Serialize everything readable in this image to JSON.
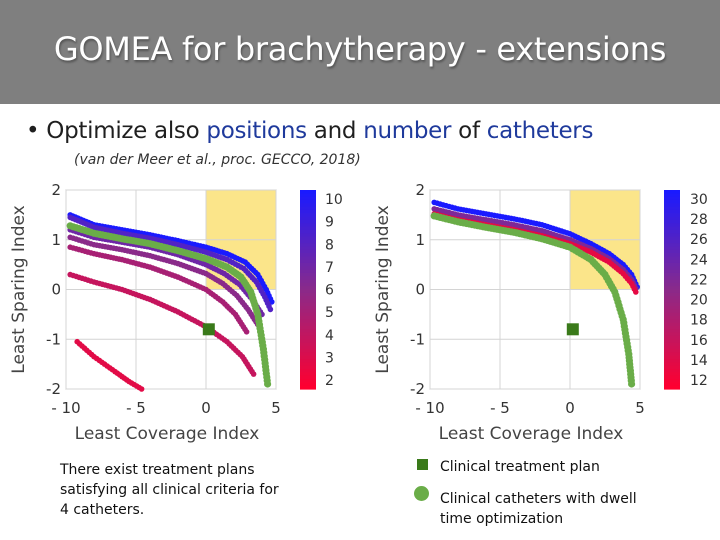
{
  "title": "GOMEA for brachytherapy - extensions",
  "bullet": {
    "marker": "•",
    "parts": [
      "Optimize also ",
      "positions",
      " and ",
      "number",
      " of ",
      "catheters"
    ]
  },
  "citation": "(van der Meer et al., proc. GECCO, 2018)",
  "note": "There exist treatment plans satisfying all clinical criteria for 4 catheters.",
  "legend": {
    "clinical_plan": "Clinical treatment plan",
    "clinical_catheters": "Clinical catheters with dwell time optimization"
  },
  "colors": {
    "title_bar": "#7f7f7f",
    "highlight_text": "#1f3a9c",
    "feasible_region": "#fbe58a",
    "clinical_plan_marker": "#3a7a1a",
    "clinical_front": "#6aad48",
    "colorbar_low": "#ff0030",
    "colorbar_mid": "#8a2a8a",
    "colorbar_high": "#1a1aff"
  },
  "chart_data": [
    {
      "type": "scatter",
      "xlabel": "Least Coverage Index",
      "ylabel": "Least Sparing Index",
      "xlim": [
        -10,
        5
      ],
      "ylim": [
        -2,
        2
      ],
      "xticks": [
        "- 10",
        "- 5",
        "0",
        "5"
      ],
      "yticks": [
        "2",
        "1",
        "0",
        "-1",
        "-2"
      ],
      "feasible_region": {
        "x": [
          0,
          5
        ],
        "y": [
          0,
          2
        ]
      },
      "clinical_plan": {
        "x": 0.2,
        "y": -0.8
      },
      "colorbar": {
        "label_values": [
          10,
          9,
          8,
          7,
          6,
          5,
          4,
          3,
          2
        ],
        "min": 2,
        "max": 10
      },
      "series": [
        {
          "color_value": 10,
          "points": [
            [
              -9.7,
              1.5
            ],
            [
              -8,
              1.3
            ],
            [
              -6,
              1.2
            ],
            [
              -4,
              1.1
            ],
            [
              -2,
              0.98
            ],
            [
              0,
              0.85
            ],
            [
              1.5,
              0.72
            ],
            [
              2.8,
              0.55
            ],
            [
              3.7,
              0.3
            ],
            [
              4.3,
              0.0
            ],
            [
              4.7,
              -0.25
            ]
          ]
        },
        {
          "color_value": 8,
          "points": [
            [
              -9.7,
              1.45
            ],
            [
              -8,
              1.25
            ],
            [
              -6,
              1.13
            ],
            [
              -4,
              1.03
            ],
            [
              -2,
              0.9
            ],
            [
              0,
              0.75
            ],
            [
              1.5,
              0.6
            ],
            [
              2.7,
              0.42
            ],
            [
              3.6,
              0.15
            ],
            [
              4.2,
              -0.15
            ],
            [
              4.6,
              -0.4
            ]
          ]
        },
        {
          "color_value": 7,
          "points": [
            [
              -9.7,
              1.2
            ],
            [
              -8,
              1.05
            ],
            [
              -6,
              0.95
            ],
            [
              -4,
              0.85
            ],
            [
              -2,
              0.7
            ],
            [
              0,
              0.5
            ],
            [
              1.3,
              0.32
            ],
            [
              2.4,
              0.1
            ],
            [
              3.3,
              -0.2
            ],
            [
              4.0,
              -0.5
            ]
          ]
        },
        {
          "color_value": 6,
          "points": [
            [
              -9.7,
              1.05
            ],
            [
              -8,
              0.9
            ],
            [
              -6,
              0.8
            ],
            [
              -4,
              0.68
            ],
            [
              -2,
              0.52
            ],
            [
              0,
              0.32
            ],
            [
              1.2,
              0.12
            ],
            [
              2.2,
              -0.12
            ],
            [
              3.0,
              -0.4
            ],
            [
              3.8,
              -0.75
            ]
          ]
        },
        {
          "color_value": 5,
          "points": [
            [
              -9.7,
              0.85
            ],
            [
              -8,
              0.72
            ],
            [
              -6,
              0.6
            ],
            [
              -4,
              0.45
            ],
            [
              -2,
              0.25
            ],
            [
              0,
              0.0
            ],
            [
              1.2,
              -0.25
            ],
            [
              2.1,
              -0.5
            ],
            [
              2.9,
              -0.85
            ]
          ]
        },
        {
          "color_value": 4,
          "points": [
            [
              -9.7,
              0.3
            ],
            [
              -8,
              0.15
            ],
            [
              -6,
              0.0
            ],
            [
              -4,
              -0.2
            ],
            [
              -2,
              -0.45
            ],
            [
              0,
              -0.75
            ],
            [
              1.5,
              -1.05
            ],
            [
              2.6,
              -1.35
            ],
            [
              3.4,
              -1.7
            ]
          ]
        },
        {
          "color_value": 3,
          "points": [
            [
              -9.2,
              -1.05
            ],
            [
              -8,
              -1.35
            ],
            [
              -6.5,
              -1.65
            ],
            [
              -5.5,
              -1.85
            ],
            [
              -4.6,
              -2.0
            ]
          ]
        },
        {
          "name": "clinical",
          "clinical": true,
          "points": [
            [
              -9.7,
              1.28
            ],
            [
              -8,
              1.13
            ],
            [
              -6,
              1.02
            ],
            [
              -4,
              0.92
            ],
            [
              -2,
              0.78
            ],
            [
              0,
              0.62
            ],
            [
              1.5,
              0.45
            ],
            [
              2.5,
              0.25
            ],
            [
              3.2,
              -0.05
            ],
            [
              3.7,
              -0.5
            ],
            [
              4.1,
              -1.2
            ],
            [
              4.4,
              -1.9
            ]
          ]
        }
      ]
    },
    {
      "type": "scatter",
      "xlabel": "Least Coverage Index",
      "ylabel": "Least Sparing Index",
      "xlim": [
        -10,
        5
      ],
      "ylim": [
        -2,
        2
      ],
      "xticks": [
        "- 10",
        "- 5",
        "0",
        "5"
      ],
      "yticks": [
        "2",
        "1",
        "0",
        "-1",
        "-2"
      ],
      "feasible_region": {
        "x": [
          0,
          5
        ],
        "y": [
          0,
          2
        ]
      },
      "clinical_plan": {
        "x": 0.2,
        "y": -0.8
      },
      "colorbar": {
        "label_values": [
          30,
          28,
          26,
          24,
          22,
          20,
          18,
          16,
          14,
          12
        ],
        "min": 12,
        "max": 30
      },
      "series": [
        {
          "color_value": 30,
          "points": [
            [
              -9.7,
              1.75
            ],
            [
              -8,
              1.62
            ],
            [
              -6,
              1.52
            ],
            [
              -4,
              1.42
            ],
            [
              -2,
              1.3
            ],
            [
              0,
              1.12
            ],
            [
              1.5,
              0.92
            ],
            [
              2.8,
              0.72
            ],
            [
              3.8,
              0.5
            ],
            [
              4.4,
              0.3
            ],
            [
              4.8,
              0.05
            ]
          ]
        },
        {
          "color_value": 22,
          "points": [
            [
              -9.7,
              1.62
            ],
            [
              -8,
              1.5
            ],
            [
              -6,
              1.4
            ],
            [
              -4,
              1.3
            ],
            [
              -2,
              1.18
            ],
            [
              0,
              1.0
            ],
            [
              1.5,
              0.82
            ],
            [
              2.8,
              0.62
            ],
            [
              3.8,
              0.4
            ],
            [
              4.4,
              0.2
            ],
            [
              4.7,
              0.02
            ]
          ]
        },
        {
          "color_value": 14,
          "points": [
            [
              -9.7,
              1.52
            ],
            [
              -8,
              1.4
            ],
            [
              -6,
              1.3
            ],
            [
              -4,
              1.2
            ],
            [
              -2,
              1.08
            ],
            [
              0,
              0.92
            ],
            [
              1.5,
              0.75
            ],
            [
              2.8,
              0.55
            ],
            [
              3.8,
              0.32
            ],
            [
              4.4,
              0.12
            ],
            [
              4.7,
              -0.05
            ]
          ]
        },
        {
          "name": "clinical",
          "clinical": true,
          "points": [
            [
              -9.7,
              1.48
            ],
            [
              -8,
              1.36
            ],
            [
              -6,
              1.25
            ],
            [
              -4,
              1.15
            ],
            [
              -2,
              1.02
            ],
            [
              0,
              0.85
            ],
            [
              1.5,
              0.6
            ],
            [
              2.5,
              0.3
            ],
            [
              3.2,
              -0.05
            ],
            [
              3.8,
              -0.6
            ],
            [
              4.2,
              -1.3
            ],
            [
              4.4,
              -1.9
            ]
          ]
        }
      ]
    }
  ]
}
